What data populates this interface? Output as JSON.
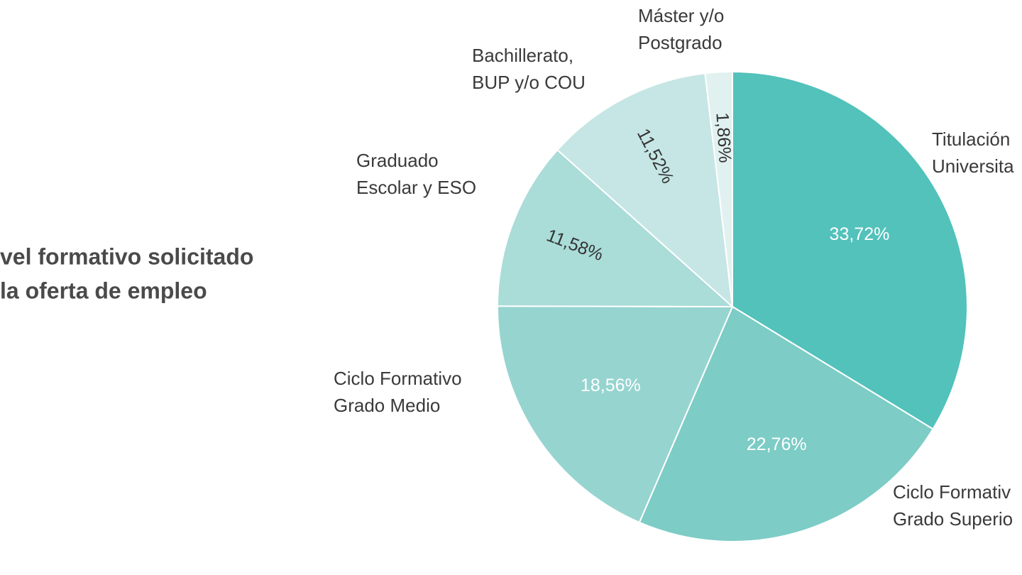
{
  "chart_data": {
    "type": "pie",
    "title": [
      "vel formativo solicitado",
      "la oferta de empleo"
    ],
    "categories": [
      [
        "Titulación",
        "Universita"
      ],
      [
        "Ciclo Formativ",
        "Grado Superio"
      ],
      [
        "Ciclo Formativo",
        "Grado Medio"
      ],
      [
        "Graduado",
        "Escolar y ESO"
      ],
      [
        "Bachillerato,",
        "BUP y/o COU"
      ],
      [
        "Máster y/o",
        "Postgrado"
      ]
    ],
    "values": [
      33.72,
      22.76,
      18.56,
      11.58,
      11.52,
      1.86
    ],
    "value_labels": [
      "33,72%",
      "22,76%",
      "18,56%",
      "11,58%",
      "11,52%",
      "1,86%"
    ],
    "colors": [
      "#52c2bb",
      "#7dccc6",
      "#96d4d0",
      "#aadcd8",
      "#c5e6e4",
      "#e0f1f0"
    ]
  }
}
